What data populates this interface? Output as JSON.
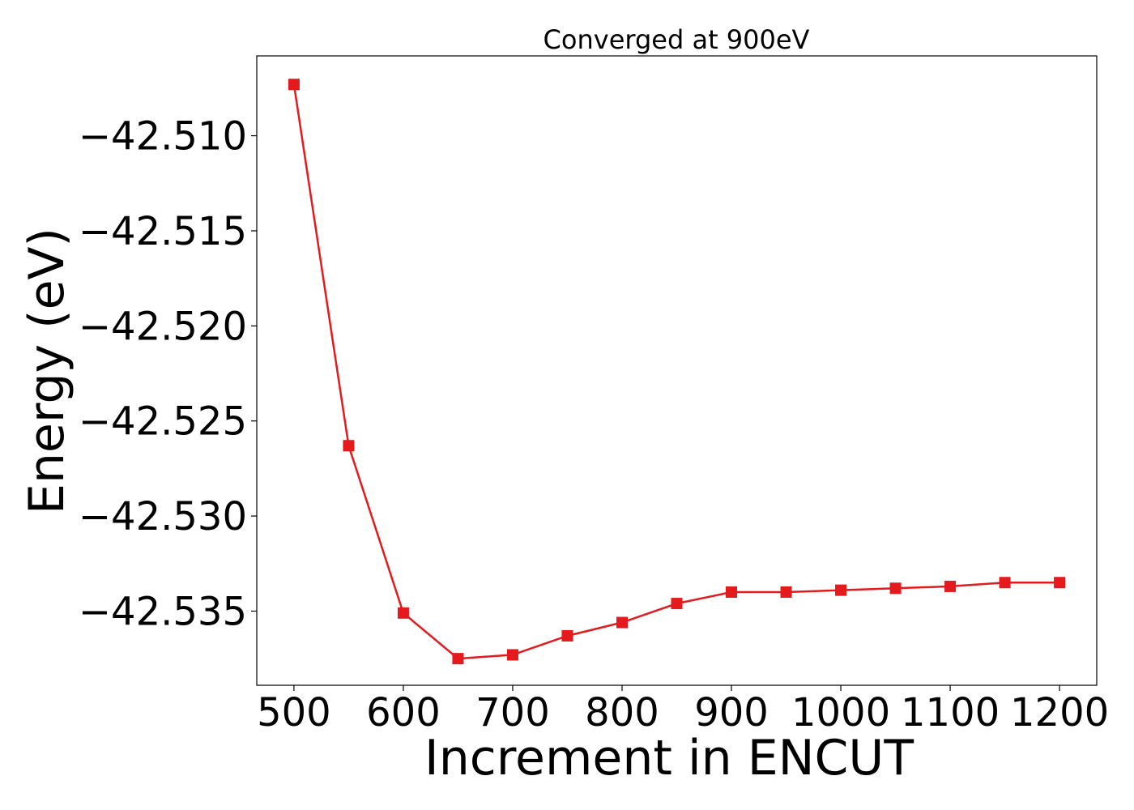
{
  "chart_data": {
    "type": "line",
    "title": "Converged at 900eV",
    "xlabel": "Increment in ENCUT",
    "ylabel": "Energy (eV)",
    "x": [
      500,
      550,
      600,
      650,
      700,
      750,
      800,
      850,
      900,
      950,
      1000,
      1050,
      1100,
      1150,
      1200
    ],
    "series": [
      {
        "values": [
          -42.5073,
          -42.5263,
          -42.5351,
          -42.5375,
          -42.5373,
          -42.5363,
          -42.5356,
          -42.5346,
          -42.534,
          -42.534,
          -42.5339,
          -42.5338,
          -42.5337,
          -42.5335,
          -42.5335
        ],
        "color": "#e41a1c",
        "marker": "square"
      }
    ],
    "xticks": [
      500,
      600,
      700,
      800,
      900,
      1000,
      1100,
      1200
    ],
    "yticks": [
      -42.51,
      -42.515,
      -42.52,
      -42.525,
      -42.53,
      -42.535
    ],
    "ytick_labels": [
      "−42.510",
      "−42.515",
      "−42.520",
      "−42.525",
      "−42.530",
      "−42.535"
    ],
    "xlim": [
      466,
      1234
    ],
    "ylim": [
      -42.5389,
      -42.5058
    ],
    "grid": false,
    "legend": "none"
  }
}
